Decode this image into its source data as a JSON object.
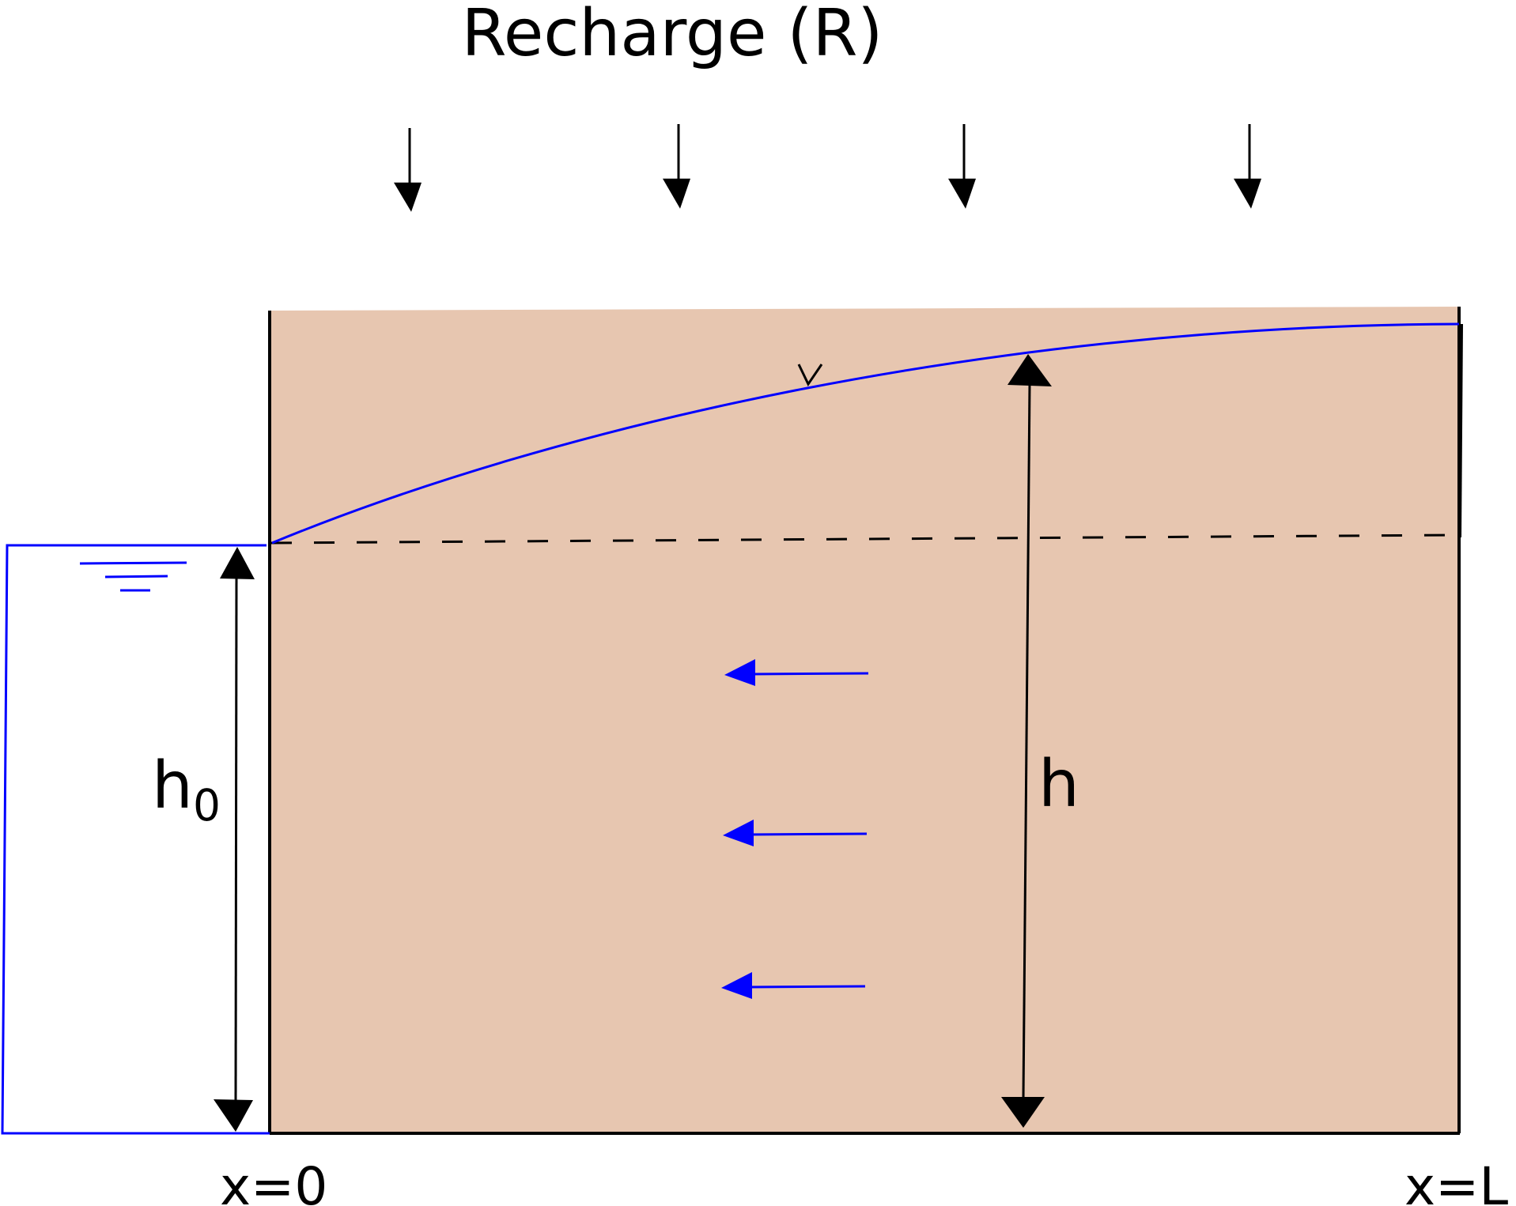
{
  "title": "Recharge (R)",
  "labels": {
    "h0_main": "h",
    "h0_sub": "0",
    "h": "h",
    "x_left": "x=0",
    "x_right": "x=L"
  },
  "colors": {
    "soil": "#e7c6b0",
    "water": "#0000ff",
    "outline": "#000000",
    "background": "#ffffff"
  },
  "icons": {
    "water_table_marker": "inverted-triangle-icon",
    "water_surface_symbol": "water-surface-icon"
  }
}
